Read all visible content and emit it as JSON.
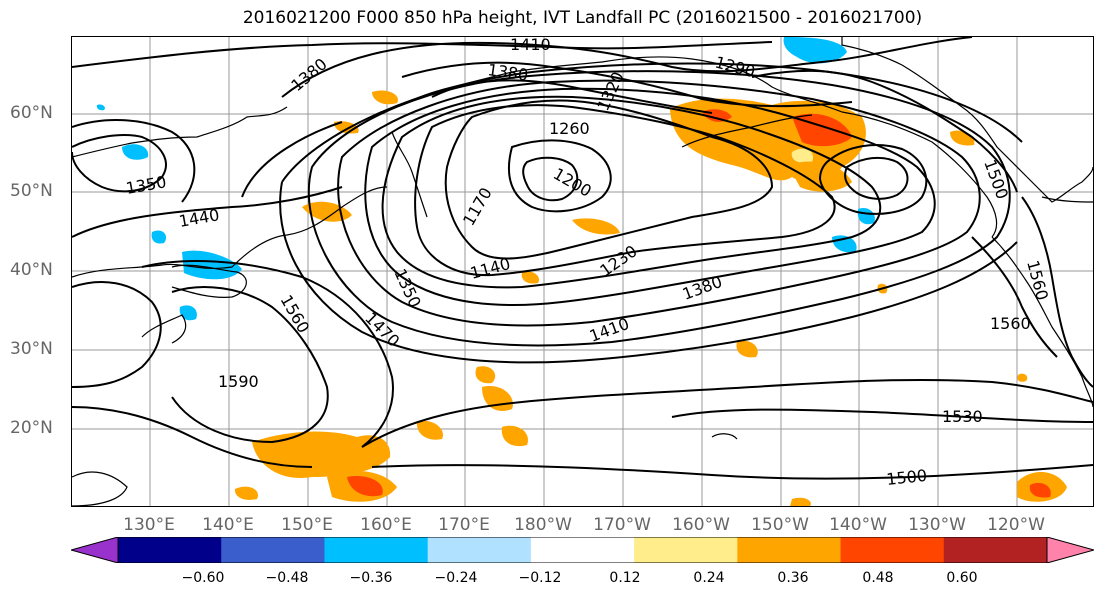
{
  "title": "2016021200 F000 850 hPa height, IVT Landfall PC (2016021500 - 2016021700)",
  "lat_labels": [
    "60°N",
    "50°N",
    "40°N",
    "30°N",
    "20°N"
  ],
  "lon_labels": [
    "130°E",
    "140°E",
    "150°E",
    "160°E",
    "170°E",
    "180°W",
    "170°W",
    "160°W",
    "150°W",
    "140°W",
    "130°W",
    "120°W"
  ],
  "contour_labels": [
    "1410",
    "1380",
    "1380",
    "1320",
    "1290",
    "1260",
    "1350",
    "1200",
    "1440",
    "1170",
    "1140",
    "1230",
    "1380",
    "1410",
    "1350",
    "1470",
    "1560",
    "1590",
    "1500",
    "1560",
    "1560",
    "1530",
    "1500"
  ],
  "colorbar": {
    "colors": [
      "#9932cc",
      "#00008b",
      "#3a5fcd",
      "#00bfff",
      "#b0e2ff",
      "#ffffff",
      "#ffec8b",
      "#ffa500",
      "#ff4500",
      "#b22222",
      "#ff82ab"
    ],
    "tick_labels": [
      "−0.60",
      "−0.48",
      "−0.36",
      "−0.24",
      "−0.12",
      "0.12",
      "0.24",
      "0.36",
      "0.48",
      "0.60"
    ]
  }
}
